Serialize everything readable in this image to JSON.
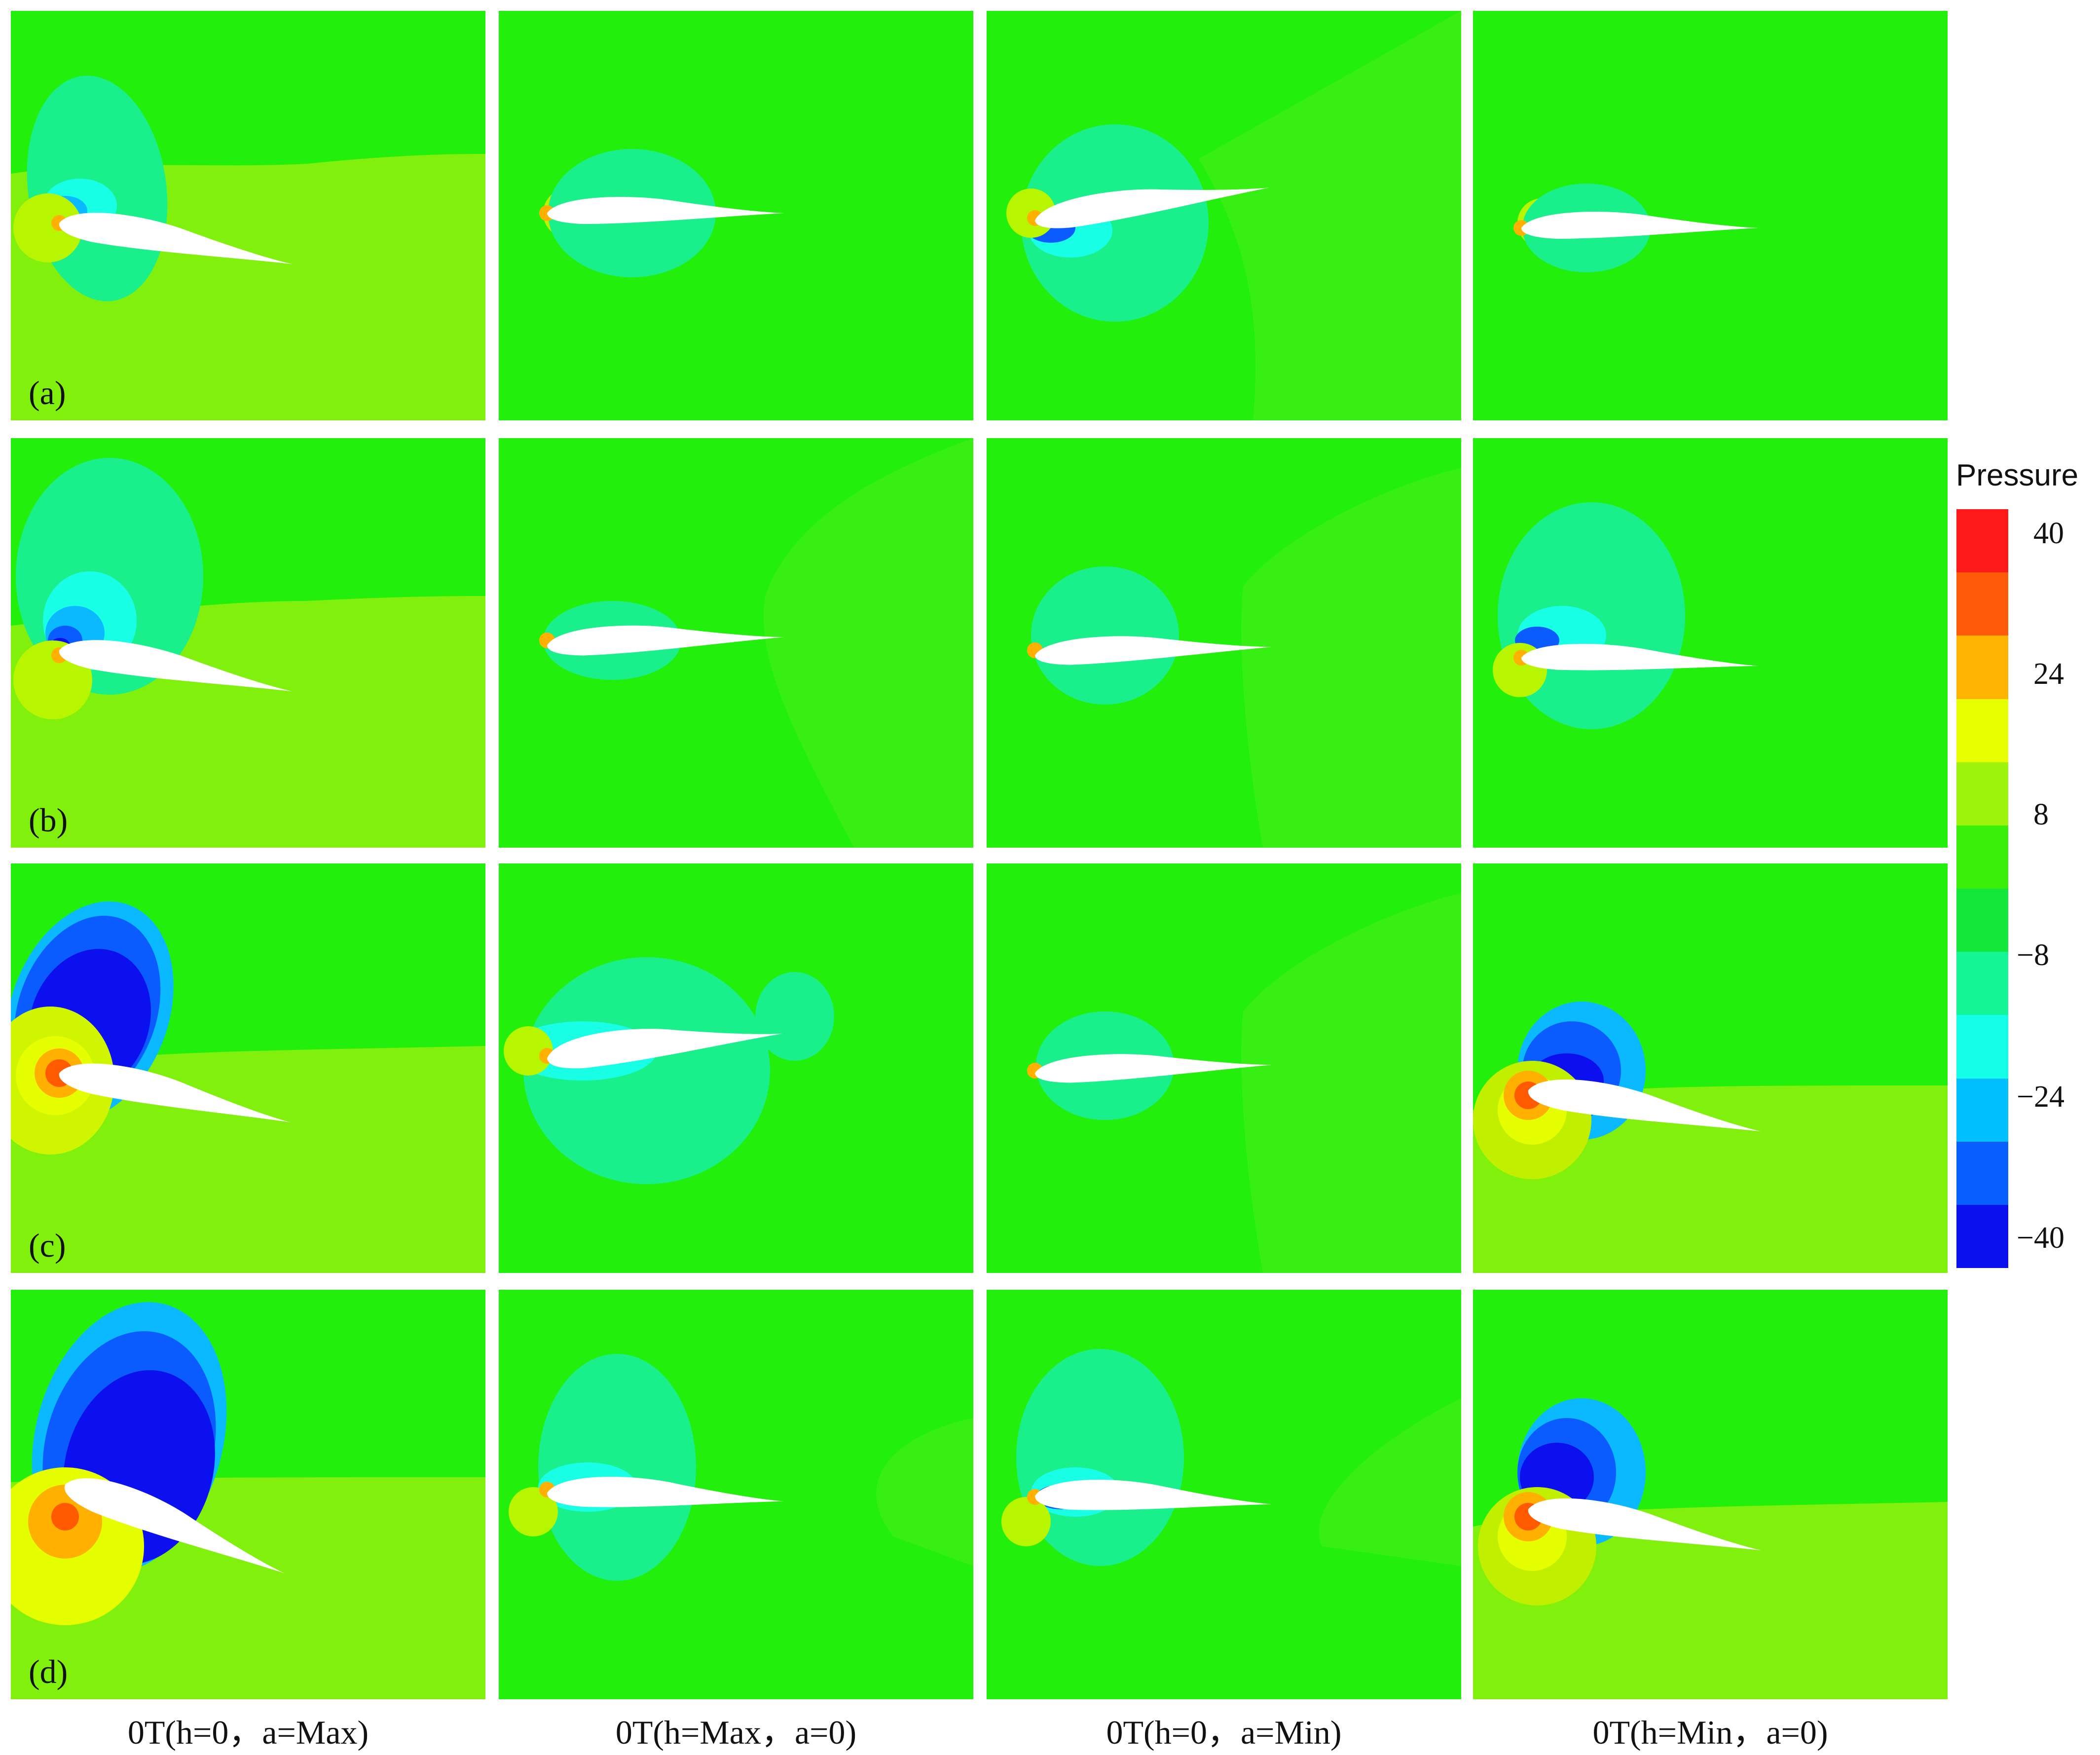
{
  "rows": [
    {
      "label": "(a)"
    },
    {
      "label": "(b)"
    },
    {
      "label": "(c)"
    },
    {
      "label": "(d)"
    }
  ],
  "columns": [
    {
      "caption": "0T(h=0，a=Max)"
    },
    {
      "caption": "0T(h=Max，a=0)"
    },
    {
      "caption": "0T(h=0，a=Min)"
    },
    {
      "caption": "0T(h=Min，a=0)"
    }
  ],
  "legend": {
    "title": "Pressure",
    "ticks": [
      "40",
      "24",
      "8",
      "−8",
      "−24",
      "−40"
    ],
    "colors": [
      "#ff1a1a",
      "#ff5a0a",
      "#ffb300",
      "#e8ff00",
      "#9cf50a",
      "#3af00a",
      "#14e63c",
      "#14f596",
      "#14ffe8",
      "#00bfff",
      "#0a60ff",
      "#0a10ee"
    ]
  },
  "field_colors": {
    "background_green": "#22f00c",
    "lime": "#80f00c",
    "mint": "#19f08c",
    "cyan": "#19ffe6",
    "sky": "#0ab9ff",
    "blue": "#0a5cff",
    "deep_blue": "#0c10ee",
    "yellow": "#e6ff00",
    "orange": "#ffb000",
    "red_orange": "#ff5a00",
    "airfoil": "#ffffff"
  }
}
